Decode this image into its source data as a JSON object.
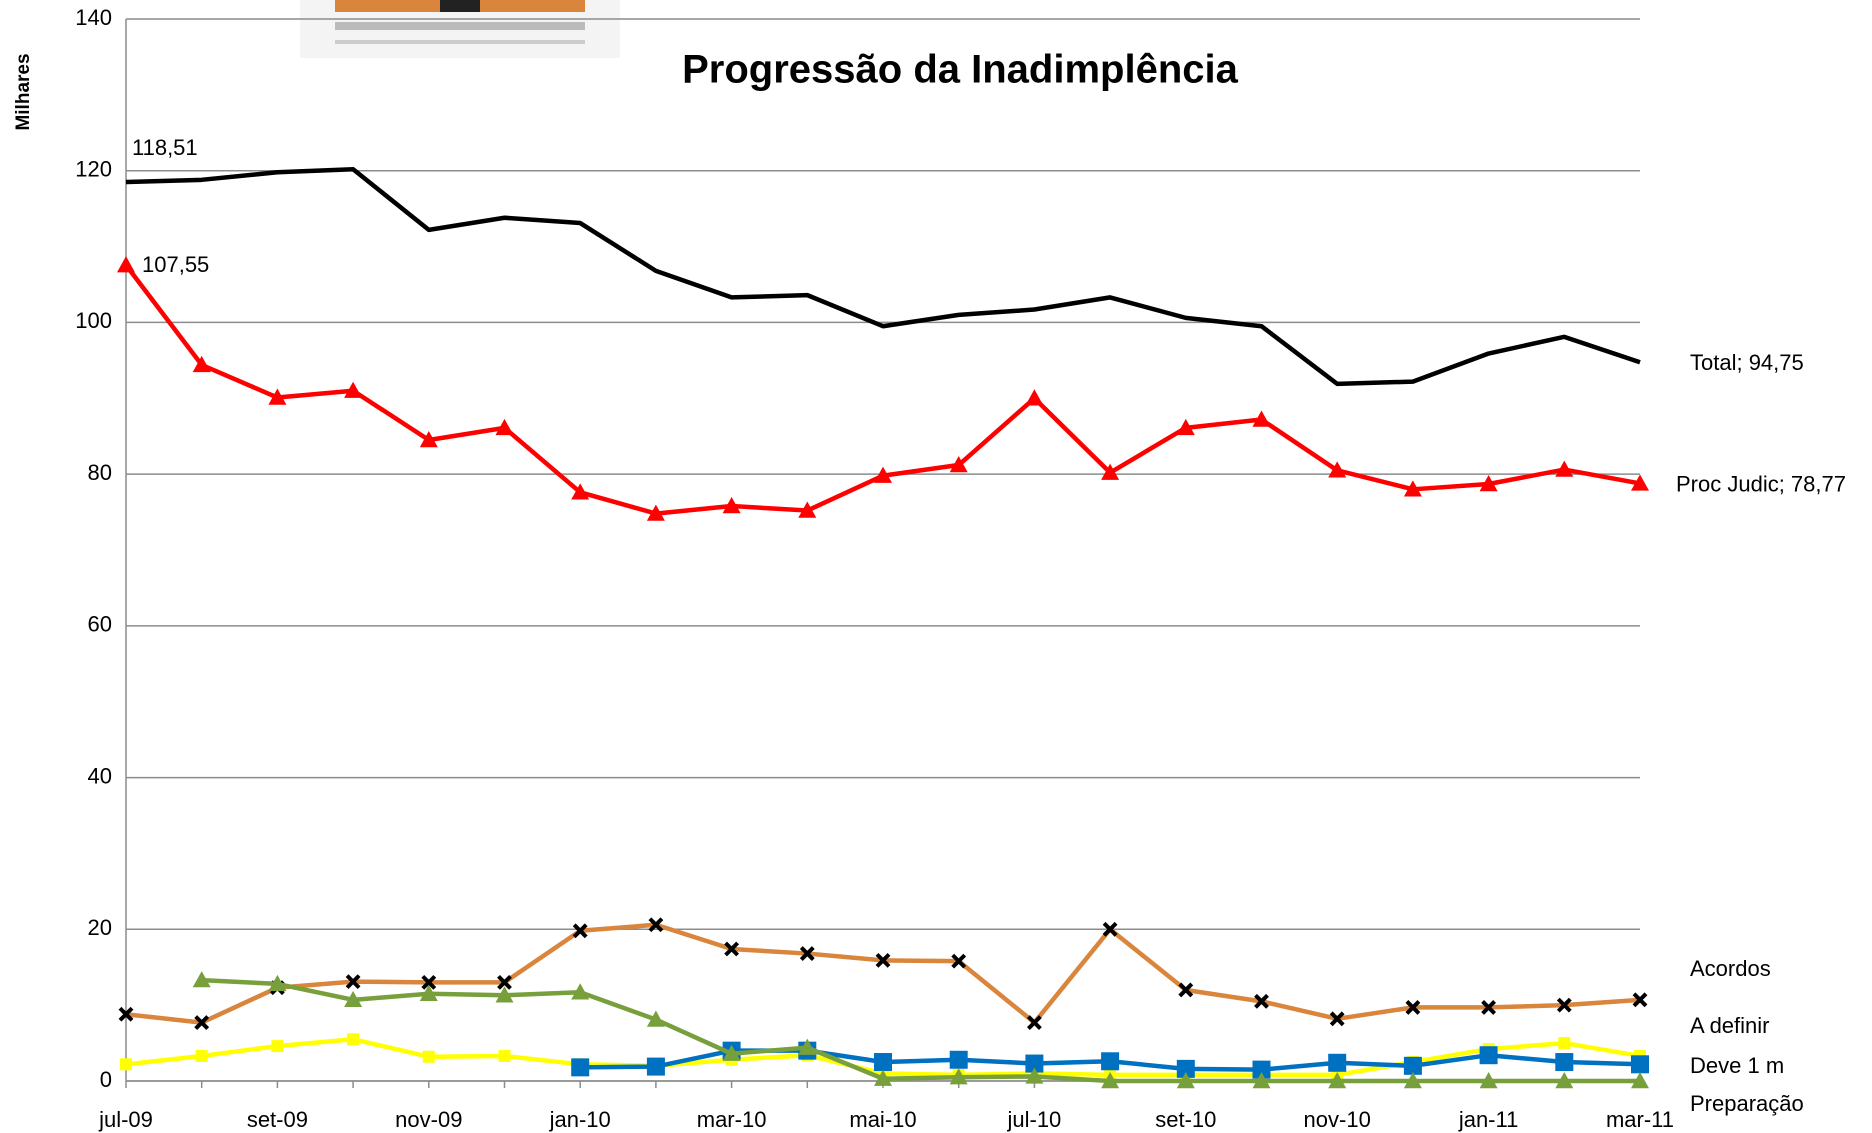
{
  "chart_data": {
    "type": "line",
    "title": "Progressão da Inadimplência",
    "y_label": "Milhares",
    "categories": [
      "jul-09",
      null,
      "set-09",
      null,
      "nov-09",
      null,
      "jan-10",
      null,
      "mar-10",
      null,
      "mai-10",
      null,
      "jul-10",
      null,
      "set-10",
      null,
      "nov-10",
      null,
      "jan-11",
      null,
      "mar-11"
    ],
    "ylim": [
      0,
      140
    ],
    "yticks": [
      0,
      20,
      40,
      60,
      80,
      100,
      120,
      140
    ],
    "grid": true,
    "series": [
      {
        "name": "Total",
        "color": "#000000",
        "marker": "none",
        "values": [
          118.51,
          118.8,
          119.8,
          120.2,
          112.2,
          113.8,
          113.1,
          106.8,
          103.3,
          103.6,
          99.5,
          101.0,
          101.7,
          103.3,
          100.6,
          99.5,
          91.9,
          92.2,
          95.9,
          98.1,
          94.75
        ],
        "value_labels": [
          "118,51",
          null,
          null,
          null,
          null,
          null,
          null,
          null,
          null,
          null,
          null,
          null,
          null,
          null,
          null,
          null,
          null,
          null,
          null,
          null,
          "Total;  94,75"
        ]
      },
      {
        "name": "Proc Judic",
        "color": "#ff0000",
        "marker": "triangle",
        "values": [
          107.55,
          94.4,
          90.1,
          91.0,
          84.5,
          86.1,
          77.6,
          74.8,
          75.8,
          75.2,
          79.8,
          81.2,
          90.0,
          80.2,
          86.1,
          87.2,
          80.5,
          78.0,
          78.7,
          80.6,
          78.77
        ],
        "value_labels": [
          "107,55",
          null,
          null,
          null,
          null,
          null,
          null,
          null,
          null,
          null,
          null,
          null,
          null,
          null,
          null,
          null,
          null,
          null,
          null,
          null,
          "Proc Judic;  78,77"
        ]
      },
      {
        "name": "Acordos",
        "color": "#d9853b",
        "marker": "x",
        "values": [
          8.8,
          7.7,
          12.3,
          13.1,
          13.0,
          13.0,
          19.8,
          20.6,
          17.4,
          16.8,
          15.9,
          15.8,
          7.7,
          20.0,
          12.0,
          10.5,
          8.2,
          9.7,
          9.7,
          10.0,
          10.7
        ]
      },
      {
        "name": "A definir",
        "color": "#ffff00",
        "marker": "smallsquare",
        "values": [
          2.2,
          3.3,
          4.6,
          5.5,
          3.2,
          3.3,
          2.2,
          2.0,
          2.8,
          3.4,
          1.0,
          0.8,
          1.0,
          0.8,
          0.8,
          0.8,
          0.8,
          2.5,
          4.2,
          5.0,
          3.3
        ]
      },
      {
        "name": "Deve 1 m",
        "color": "#0070c0",
        "marker": "square",
        "values": [
          null,
          null,
          null,
          null,
          null,
          null,
          1.8,
          1.9,
          4.0,
          4.0,
          2.5,
          2.8,
          2.3,
          2.6,
          1.6,
          1.5,
          2.4,
          2.0,
          3.4,
          2.5,
          2.2
        ]
      },
      {
        "name": "Preparação",
        "color": "#77a03c",
        "marker": "triangle",
        "values": [
          null,
          13.3,
          12.8,
          10.7,
          11.5,
          11.3,
          11.7,
          8.1,
          3.6,
          4.4,
          0.3,
          0.5,
          0.6,
          0,
          0,
          0,
          0,
          0,
          0,
          0,
          0
        ]
      }
    ]
  }
}
